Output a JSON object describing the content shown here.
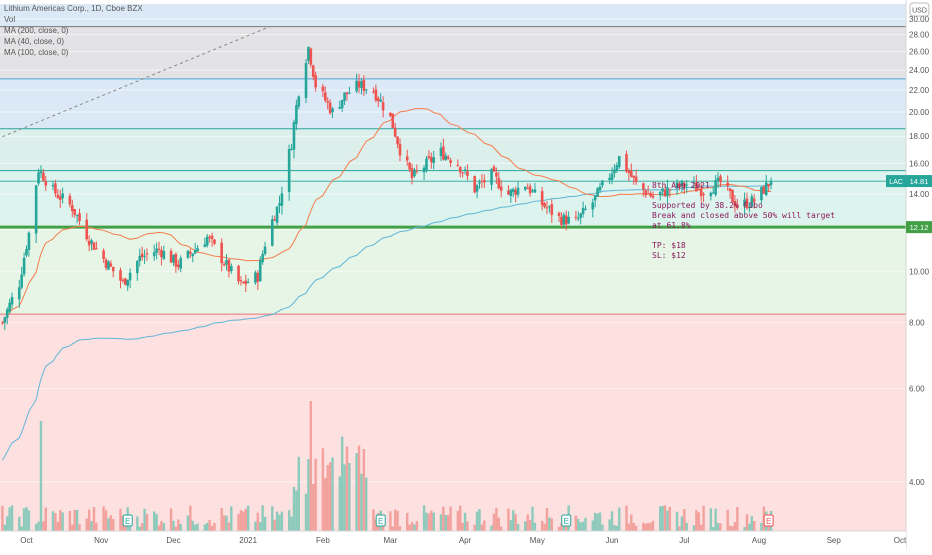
{
  "legend": {
    "title": "Lithium Americas Corp., 1D, Cboe BZX",
    "vol": "Vol",
    "ma200": "MA (200, close, 0)",
    "ma40": "MA (40, close, 0)",
    "ma100": "MA (100, close, 0)"
  },
  "currency": "USD",
  "note": {
    "lines": [
      "8th Aug 2021",
      "",
      "Supported by 38.2% Fibo",
      "Break and closed above 50% will target",
      "at 61.8%",
      "",
      "TP: $18",
      "SL: $12"
    ]
  },
  "price_tag": {
    "label": "LAC",
    "value": "14.81"
  },
  "support_tag": {
    "value": "12.12"
  },
  "earnings_marker": "E",
  "colors": {
    "up": "#26a69a",
    "down": "#ef5350",
    "ma40": "#f57c4a",
    "ma200": "#5fb6d8",
    "support": "#43a047",
    "note": "#8b1a5a"
  },
  "chart_data": {
    "type": "candlestick",
    "x_ticks": [
      "Oct",
      "Nov",
      "Dec",
      "2021",
      "Feb",
      "Mar",
      "Apr",
      "May",
      "Jun",
      "Jul",
      "Aug",
      "Sep",
      "Oct"
    ],
    "y_ticks": [
      "4.00",
      "6.00",
      "8.00",
      "10.00",
      "12.00",
      "14.00",
      "16.00",
      "18.00",
      "20.00",
      "22.00",
      "24.00",
      "26.00",
      "28.00",
      "30.00"
    ],
    "y_scale": "log",
    "ylim": [
      3.0,
      32.0
    ],
    "x_range": [
      "2020-09-20",
      "2021-10-01"
    ],
    "fib_levels": [
      8.3,
      12.12,
      15.5,
      18.6,
      23.1,
      29.0
    ],
    "support": 12.12,
    "last_price": 14.81,
    "earnings_dates": [
      "2020-11-12",
      "2021-02-25",
      "2021-05-13",
      "2021-08-05"
    ],
    "ohlc_keypoints": [
      [
        "2020-09-21",
        8.0
      ],
      [
        "2020-09-28",
        9.5
      ],
      [
        "2020-10-02",
        11.8
      ],
      [
        "2020-10-06",
        15.6
      ],
      [
        "2020-10-12",
        14.2
      ],
      [
        "2020-10-20",
        13.2
      ],
      [
        "2020-10-27",
        11.5
      ],
      [
        "2020-11-03",
        10.4
      ],
      [
        "2020-11-10",
        9.5
      ],
      [
        "2020-11-17",
        10.6
      ],
      [
        "2020-11-25",
        11.0
      ],
      [
        "2020-12-03",
        10.3
      ],
      [
        "2020-12-10",
        11.0
      ],
      [
        "2020-12-15",
        11.6
      ],
      [
        "2020-12-22",
        10.4
      ],
      [
        "2020-12-29",
        9.4
      ],
      [
        "2021-01-05",
        9.8
      ],
      [
        "2021-01-09",
        11.8
      ],
      [
        "2021-01-14",
        13.5
      ],
      [
        "2021-01-19",
        17.5
      ],
      [
        "2021-01-22",
        22.0
      ],
      [
        "2021-01-26",
        26.5
      ],
      [
        "2021-01-29",
        22.5
      ],
      [
        "2021-02-05",
        20.0
      ],
      [
        "2021-02-10",
        21.5
      ],
      [
        "2021-02-16",
        22.5
      ],
      [
        "2021-02-22",
        22.0
      ],
      [
        "2021-03-01",
        19.5
      ],
      [
        "2021-03-05",
        17.0
      ],
      [
        "2021-03-10",
        15.0
      ],
      [
        "2021-03-15",
        15.8
      ],
      [
        "2021-03-22",
        16.8
      ],
      [
        "2021-03-29",
        16.0
      ],
      [
        "2021-04-05",
        14.3
      ],
      [
        "2021-04-12",
        15.2
      ],
      [
        "2021-04-19",
        14.0
      ],
      [
        "2021-04-26",
        14.6
      ],
      [
        "2021-05-03",
        13.4
      ],
      [
        "2021-05-10",
        12.6
      ],
      [
        "2021-05-17",
        12.4
      ],
      [
        "2021-05-24",
        13.5
      ],
      [
        "2021-05-31",
        15.2
      ],
      [
        "2021-06-04",
        16.4
      ],
      [
        "2021-06-11",
        14.6
      ],
      [
        "2021-06-18",
        13.8
      ],
      [
        "2021-06-25",
        14.3
      ],
      [
        "2021-07-02",
        14.6
      ],
      [
        "2021-07-09",
        14.2
      ],
      [
        "2021-07-16",
        14.7
      ],
      [
        "2021-07-23",
        13.3
      ],
      [
        "2021-07-30",
        13.6
      ],
      [
        "2021-08-06",
        14.81
      ]
    ]
  }
}
